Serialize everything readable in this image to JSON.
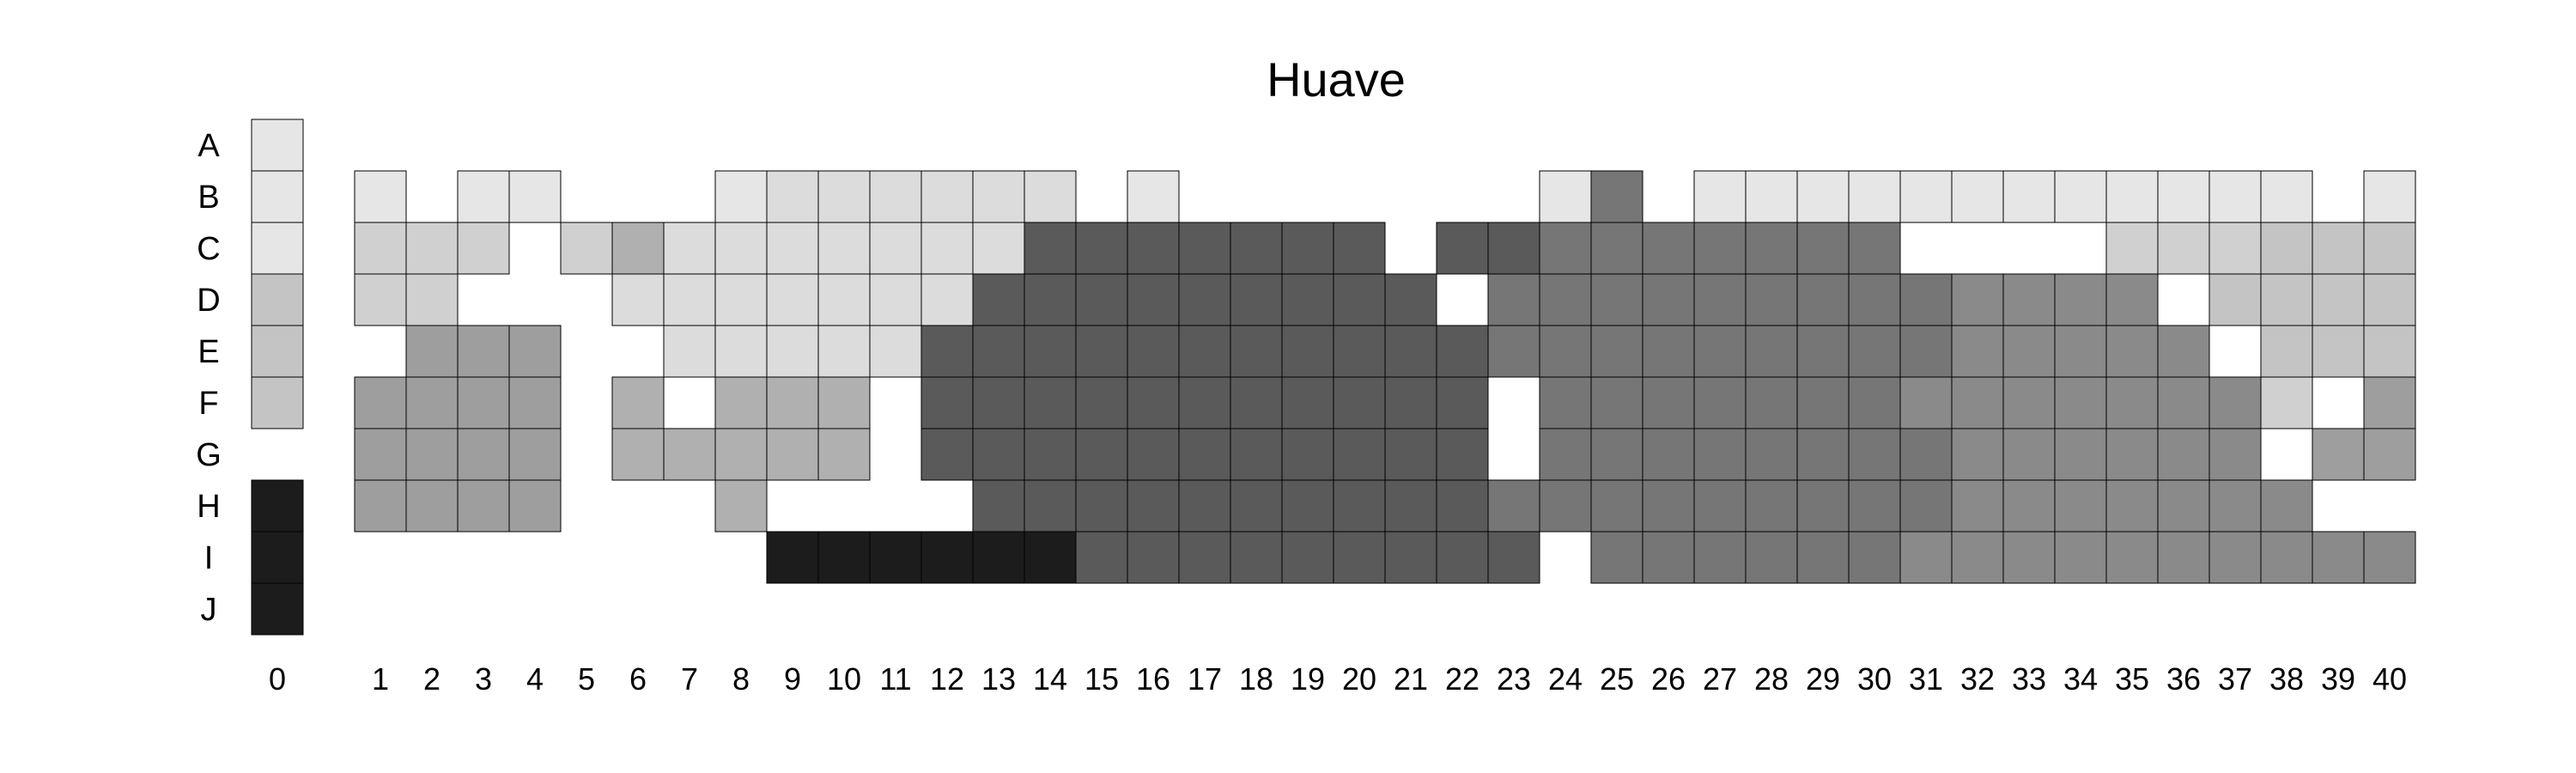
{
  "chart_data": {
    "type": "heatmap",
    "title": "Huave",
    "xlabel": "",
    "ylabel": "",
    "x_categories": [
      "0",
      "1",
      "2",
      "3",
      "4",
      "5",
      "6",
      "7",
      "8",
      "9",
      "10",
      "11",
      "12",
      "13",
      "14",
      "15",
      "16",
      "17",
      "18",
      "19",
      "20",
      "21",
      "22",
      "23",
      "24",
      "25",
      "26",
      "27",
      "28",
      "29",
      "30",
      "31",
      "32",
      "33",
      "34",
      "35",
      "36",
      "37",
      "38",
      "39",
      "40"
    ],
    "y_categories": [
      "A",
      "B",
      "C",
      "D",
      "E",
      "F",
      "G",
      "H",
      "I",
      "J"
    ],
    "legend_column": "0",
    "grid": false,
    "value_scale": "0 = lightest grey, 9 = black; null = empty cell",
    "palette": [
      "#e6e6e6",
      "#dcdcdc",
      "#d0d0d0",
      "#c4c4c4",
      "#b0b0b0",
      "#9e9e9e",
      "#8a8a8a",
      "#767676",
      "#5a5a5a",
      "#1c1c1c"
    ],
    "rows": [
      {
        "label": "A",
        "values": [
          0,
          null,
          null,
          null,
          null,
          null,
          null,
          null,
          null,
          null,
          null,
          null,
          null,
          null,
          null,
          null,
          null,
          null,
          null,
          null,
          null,
          null,
          null,
          null,
          null,
          null,
          null,
          null,
          null,
          null,
          null,
          null,
          null,
          null,
          null,
          null,
          null,
          null,
          null,
          null,
          null
        ]
      },
      {
        "label": "B",
        "values": [
          0,
          0,
          null,
          0,
          0,
          null,
          null,
          null,
          0,
          1,
          1,
          1,
          1,
          1,
          1,
          null,
          0,
          null,
          null,
          null,
          null,
          null,
          null,
          null,
          0,
          7,
          null,
          0,
          0,
          0,
          0,
          0,
          0,
          0,
          0,
          0,
          0,
          0,
          0,
          null,
          0
        ]
      },
      {
        "label": "C",
        "values": [
          0,
          2,
          2,
          2,
          null,
          2,
          4,
          1,
          1,
          1,
          1,
          1,
          1,
          1,
          8,
          8,
          8,
          8,
          8,
          8,
          8,
          null,
          8,
          8,
          7,
          7,
          7,
          7,
          7,
          7,
          7,
          null,
          null,
          null,
          null,
          2,
          2,
          2,
          3,
          3,
          3
        ]
      },
      {
        "label": "D",
        "values": [
          3,
          2,
          2,
          null,
          null,
          null,
          1,
          1,
          1,
          1,
          1,
          1,
          1,
          8,
          8,
          8,
          8,
          8,
          8,
          8,
          8,
          8,
          null,
          7,
          7,
          7,
          7,
          7,
          7,
          7,
          7,
          7,
          6,
          6,
          6,
          6,
          null,
          3,
          3,
          3,
          3
        ]
      },
      {
        "label": "E",
        "values": [
          3,
          null,
          5,
          5,
          5,
          null,
          null,
          1,
          1,
          1,
          1,
          1,
          8,
          8,
          8,
          8,
          8,
          8,
          8,
          8,
          8,
          8,
          8,
          7,
          7,
          7,
          7,
          7,
          7,
          7,
          7,
          7,
          6,
          6,
          6,
          6,
          6,
          null,
          3,
          3,
          3
        ]
      },
      {
        "label": "F",
        "values": [
          3,
          5,
          5,
          5,
          5,
          null,
          4,
          null,
          4,
          4,
          4,
          null,
          8,
          8,
          8,
          8,
          8,
          8,
          8,
          8,
          8,
          8,
          8,
          null,
          7,
          7,
          7,
          7,
          7,
          7,
          7,
          6,
          6,
          6,
          6,
          6,
          6,
          6,
          2,
          null,
          5
        ]
      },
      {
        "label": "G",
        "values": [
          null,
          5,
          5,
          5,
          5,
          null,
          4,
          4,
          4,
          4,
          4,
          null,
          8,
          8,
          8,
          8,
          8,
          8,
          8,
          8,
          8,
          8,
          8,
          null,
          7,
          7,
          7,
          7,
          7,
          7,
          7,
          7,
          6,
          6,
          6,
          6,
          6,
          6,
          null,
          5,
          5
        ]
      },
      {
        "label": "H",
        "values": [
          9,
          5,
          5,
          5,
          5,
          null,
          null,
          null,
          4,
          null,
          null,
          null,
          null,
          8,
          8,
          8,
          8,
          8,
          8,
          8,
          8,
          8,
          8,
          7,
          7,
          7,
          7,
          7,
          7,
          7,
          7,
          7,
          6,
          6,
          6,
          6,
          6,
          6,
          6,
          null,
          null
        ]
      },
      {
        "label": "I",
        "values": [
          9,
          null,
          null,
          null,
          null,
          null,
          null,
          null,
          null,
          9,
          9,
          9,
          9,
          9,
          9,
          8,
          8,
          8,
          8,
          8,
          8,
          8,
          8,
          8,
          null,
          7,
          7,
          7,
          7,
          7,
          7,
          6,
          6,
          6,
          6,
          6,
          6,
          6,
          6,
          6,
          6
        ]
      },
      {
        "label": "J",
        "values": [
          9,
          null,
          null,
          null,
          null,
          null,
          null,
          null,
          null,
          null,
          null,
          null,
          null,
          null,
          null,
          null,
          null,
          null,
          null,
          null,
          null,
          null,
          null,
          null,
          null,
          null,
          null,
          null,
          null,
          null,
          null,
          null,
          null,
          null,
          null,
          null,
          null,
          null,
          null,
          null,
          null
        ]
      }
    ]
  }
}
